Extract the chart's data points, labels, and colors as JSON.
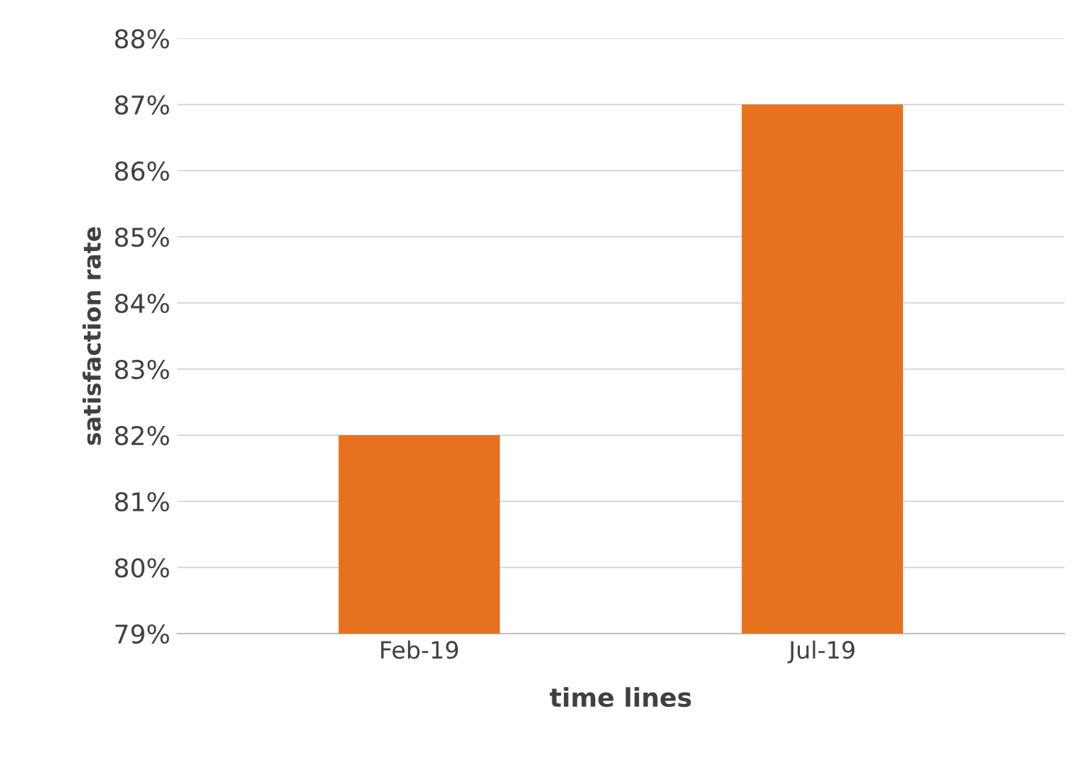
{
  "chart_data": {
    "type": "bar",
    "xlabel": "time lines",
    "ylabel": "satisfaction rate",
    "categories": [
      "Feb-19",
      "Jul-19"
    ],
    "values": [
      82,
      87
    ],
    "color": "#e8711f",
    "ylim": [
      79,
      88
    ],
    "yticks": [
      {
        "value": 79,
        "label": "79%"
      },
      {
        "value": 80,
        "label": "80%"
      },
      {
        "value": 81,
        "label": "81%"
      },
      {
        "value": 82,
        "label": "82%"
      },
      {
        "value": 83,
        "label": "83%"
      },
      {
        "value": 84,
        "label": "84%"
      },
      {
        "value": 85,
        "label": "85%"
      },
      {
        "value": 86,
        "label": "86%"
      },
      {
        "value": 87,
        "label": "87%"
      },
      {
        "value": 88,
        "label": "88%"
      }
    ],
    "grid": "y"
  }
}
